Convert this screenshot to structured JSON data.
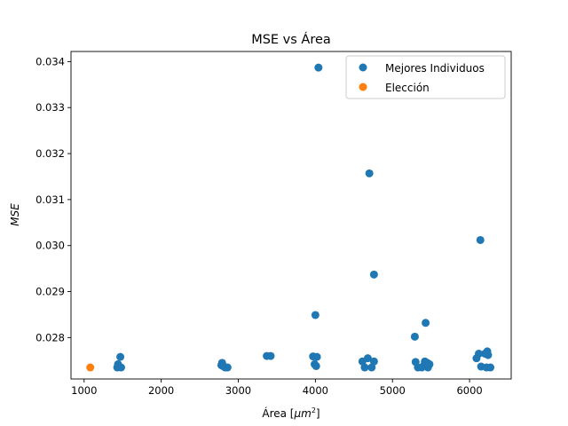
{
  "chart_data": {
    "type": "scatter",
    "title": "MSE vs Área",
    "xlabel": "Área [",
    "xlabel_unit_base": "μm",
    "xlabel_unit_exp": "2",
    "xlabel_close": "]",
    "ylabel": "MSE",
    "xlim": [
      830,
      6540
    ],
    "ylim": [
      0.0271,
      0.03422
    ],
    "xticks": [
      1000,
      2000,
      3000,
      4000,
      5000,
      6000
    ],
    "xtick_labels": [
      "1000",
      "2000",
      "3000",
      "4000",
      "5000",
      "6000"
    ],
    "yticks": [
      0.028,
      0.029,
      0.03,
      0.031,
      0.032,
      0.033,
      0.034
    ],
    "ytick_labels": [
      "0.028",
      "0.029",
      "0.030",
      "0.031",
      "0.032",
      "0.033",
      "0.034"
    ],
    "grid": false,
    "legend_position": "top-right",
    "series": [
      {
        "name": "Mejores Individuos",
        "color": "#1f77b4",
        "points": [
          [
            1430,
            0.02735
          ],
          [
            1440,
            0.02742
          ],
          [
            1450,
            0.02737
          ],
          [
            1470,
            0.02758
          ],
          [
            1480,
            0.02735
          ],
          [
            2780,
            0.0274
          ],
          [
            2790,
            0.02745
          ],
          [
            2800,
            0.02738
          ],
          [
            2830,
            0.02735
          ],
          [
            2860,
            0.02735
          ],
          [
            3370,
            0.0276
          ],
          [
            3420,
            0.0276
          ],
          [
            3970,
            0.02759
          ],
          [
            3990,
            0.02742
          ],
          [
            4000,
            0.02849
          ],
          [
            4010,
            0.02738
          ],
          [
            4020,
            0.02758
          ],
          [
            4040,
            0.03387
          ],
          [
            4610,
            0.02748
          ],
          [
            4640,
            0.02735
          ],
          [
            4680,
            0.02755
          ],
          [
            4700,
            0.03157
          ],
          [
            4730,
            0.02735
          ],
          [
            4760,
            0.02937
          ],
          [
            4760,
            0.02748
          ],
          [
            5290,
            0.02802
          ],
          [
            5300,
            0.02747
          ],
          [
            5330,
            0.02735
          ],
          [
            5380,
            0.02735
          ],
          [
            5410,
            0.0274
          ],
          [
            5420,
            0.02748
          ],
          [
            5430,
            0.02832
          ],
          [
            5450,
            0.02745
          ],
          [
            5460,
            0.02735
          ],
          [
            5480,
            0.02742
          ],
          [
            6090,
            0.02755
          ],
          [
            6120,
            0.02765
          ],
          [
            6140,
            0.03012
          ],
          [
            6150,
            0.02737
          ],
          [
            6200,
            0.02765
          ],
          [
            6220,
            0.02735
          ],
          [
            6230,
            0.0277
          ],
          [
            6240,
            0.02762
          ],
          [
            6270,
            0.02735
          ]
        ]
      },
      {
        "name": "Elección",
        "color": "#ff7f0e",
        "points": [
          [
            1080,
            0.02735
          ]
        ]
      }
    ]
  }
}
